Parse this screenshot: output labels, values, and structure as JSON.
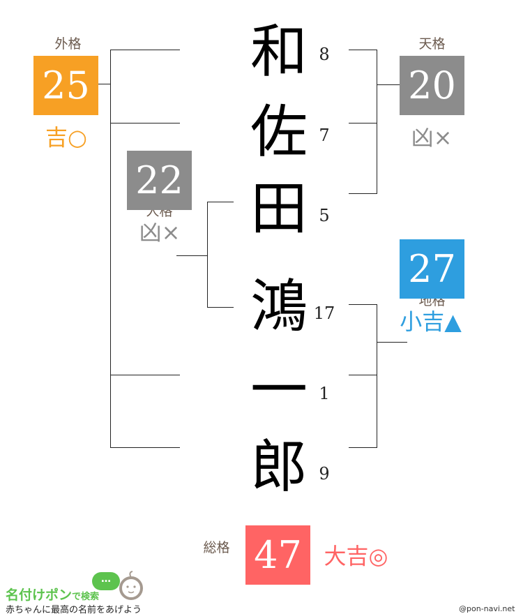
{
  "name_chars": [
    {
      "char": "和",
      "strokes": "8"
    },
    {
      "char": "佐",
      "strokes": "7"
    },
    {
      "char": "田",
      "strokes": "5"
    },
    {
      "char": "鴻",
      "strokes": "17"
    },
    {
      "char": "一",
      "strokes": "1"
    },
    {
      "char": "郎",
      "strokes": "9"
    }
  ],
  "gaikaku": {
    "label": "外格",
    "value": "25",
    "result": "吉○",
    "color": "#F7A024"
  },
  "jinkaku": {
    "label": "人格",
    "value": "22",
    "result": "凶×",
    "color": "#8C8C8C"
  },
  "tenkaku": {
    "label": "天格",
    "value": "20",
    "result": "凶×",
    "color": "#8C8C8C"
  },
  "chikaku": {
    "label": "地格",
    "value": "27",
    "result": "小吉▲",
    "color": "#2E9EDF"
  },
  "soukaku": {
    "label": "総格",
    "value": "47",
    "result": "大吉◎",
    "color": "#FF6464"
  },
  "footer": {
    "logo_main": "名付けポン",
    "logo_sub": "で検索",
    "bubble": "…",
    "tagline": "赤ちゃんに最高の名前をあげよう",
    "credit": "@pon-navi.net"
  }
}
